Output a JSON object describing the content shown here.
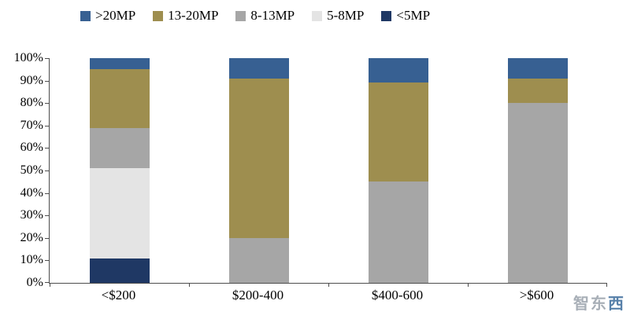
{
  "watermark": {
    "gray_part": "智东",
    "accent_part": "西",
    "gray_color": "#9aa2ab",
    "accent_color": "#3a6a9b"
  },
  "chart_data": {
    "type": "bar",
    "stacked": true,
    "percent": true,
    "title": "",
    "xlabel": "",
    "ylabel": "",
    "categories": [
      "<$200",
      "$200-400",
      "$400-600",
      ">$600"
    ],
    "series": [
      {
        "name": ">20MP",
        "color": "#376092",
        "values": [
          5,
          9,
          11,
          9
        ]
      },
      {
        "name": "13-20MP",
        "color": "#9E8E4F",
        "values": [
          26,
          71,
          44,
          11
        ]
      },
      {
        "name": "8-13MP",
        "color": "#A6A6A6",
        "values": [
          18,
          20,
          45,
          80
        ]
      },
      {
        "name": "5-8MP",
        "color": "#E4E4E4",
        "values": [
          40,
          0,
          0,
          0
        ]
      },
      {
        "name": "<5MP",
        "color": "#1F3864",
        "values": [
          11,
          0,
          0,
          0
        ]
      }
    ],
    "stack_order_bottom_to_top": [
      "<5MP",
      "5-8MP",
      "8-13MP",
      "13-20MP",
      ">20MP"
    ],
    "y_ticks": [
      "0%",
      "10%",
      "20%",
      "30%",
      "40%",
      "50%",
      "60%",
      "70%",
      "80%",
      "90%",
      "100%"
    ],
    "ylim": [
      0,
      100
    ],
    "legend_position": "top",
    "grid": false
  }
}
